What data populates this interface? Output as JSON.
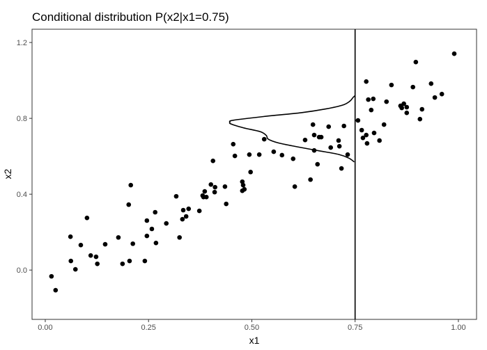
{
  "chart_data": {
    "type": "scatter",
    "title": "Conditional distribution P(x2|x1=0.75)",
    "xlabel": "x1",
    "ylabel": "x2",
    "xlim": [
      -0.032,
      1.044
    ],
    "ylim": [
      -0.26,
      1.27
    ],
    "xticks": [
      0,
      0.25,
      0.5,
      0.75,
      1.0
    ],
    "xtick_labels": [
      "0.00",
      "0.25",
      "0.50",
      "0.75",
      "1.00"
    ],
    "yticks": [
      0,
      0.4,
      0.8,
      1.2
    ],
    "ytick_labels": [
      "0.0",
      "0.4",
      "0.8",
      "1.2"
    ],
    "grid": false,
    "point_color": "#000000",
    "points": [
      [
        0.015,
        -0.033
      ],
      [
        0.025,
        -0.106
      ],
      [
        0.061,
        0.176
      ],
      [
        0.062,
        0.048
      ],
      [
        0.073,
        0.004
      ],
      [
        0.086,
        0.132
      ],
      [
        0.101,
        0.275
      ],
      [
        0.11,
        0.077
      ],
      [
        0.123,
        0.07
      ],
      [
        0.126,
        0.033
      ],
      [
        0.145,
        0.136
      ],
      [
        0.177,
        0.172
      ],
      [
        0.187,
        0.033
      ],
      [
        0.202,
        0.345
      ],
      [
        0.207,
        0.448
      ],
      [
        0.204,
        0.048
      ],
      [
        0.212,
        0.139
      ],
      [
        0.241,
        0.048
      ],
      [
        0.246,
        0.18
      ],
      [
        0.246,
        0.261
      ],
      [
        0.258,
        0.217
      ],
      [
        0.266,
        0.305
      ],
      [
        0.268,
        0.143
      ],
      [
        0.293,
        0.246
      ],
      [
        0.317,
        0.389
      ],
      [
        0.325,
        0.172
      ],
      [
        0.332,
        0.268
      ],
      [
        0.334,
        0.316
      ],
      [
        0.341,
        0.283
      ],
      [
        0.347,
        0.323
      ],
      [
        0.373,
        0.312
      ],
      [
        0.381,
        0.393
      ],
      [
        0.386,
        0.415
      ],
      [
        0.39,
        0.385
      ],
      [
        0.383,
        0.385
      ],
      [
        0.401,
        0.451
      ],
      [
        0.411,
        0.437
      ],
      [
        0.41,
        0.411
      ],
      [
        0.406,
        0.576
      ],
      [
        0.435,
        0.44
      ],
      [
        0.438,
        0.349
      ],
      [
        0.455,
        0.664
      ],
      [
        0.459,
        0.602
      ],
      [
        0.477,
        0.466
      ],
      [
        0.479,
        0.448
      ],
      [
        0.482,
        0.426
      ],
      [
        0.477,
        0.418
      ],
      [
        0.494,
        0.609
      ],
      [
        0.497,
        0.517
      ],
      [
        0.518,
        0.609
      ],
      [
        0.53,
        0.69
      ],
      [
        0.553,
        0.624
      ],
      [
        0.573,
        0.606
      ],
      [
        0.6,
        0.587
      ],
      [
        0.604,
        0.44
      ],
      [
        0.629,
        0.686
      ],
      [
        0.642,
        0.477
      ],
      [
        0.648,
        0.767
      ],
      [
        0.651,
        0.712
      ],
      [
        0.651,
        0.631
      ],
      [
        0.659,
        0.558
      ],
      [
        0.663,
        0.701
      ],
      [
        0.668,
        0.701
      ],
      [
        0.686,
        0.756
      ],
      [
        0.691,
        0.646
      ],
      [
        0.71,
        0.683
      ],
      [
        0.712,
        0.653
      ],
      [
        0.717,
        0.536
      ],
      [
        0.723,
        0.76
      ],
      [
        0.732,
        0.609
      ],
      [
        0.757,
        0.789
      ],
      [
        0.766,
        0.738
      ],
      [
        0.769,
        0.697
      ],
      [
        0.777,
        0.712
      ],
      [
        0.779,
        0.668
      ],
      [
        0.777,
        0.994
      ],
      [
        0.782,
        0.899
      ],
      [
        0.794,
        0.903
      ],
      [
        0.789,
        0.844
      ],
      [
        0.796,
        0.723
      ],
      [
        0.809,
        0.683
      ],
      [
        0.82,
        0.767
      ],
      [
        0.826,
        0.888
      ],
      [
        0.838,
        0.976
      ],
      [
        0.86,
        0.866
      ],
      [
        0.868,
        0.877
      ],
      [
        0.875,
        0.859
      ],
      [
        0.863,
        0.855
      ],
      [
        0.875,
        0.829
      ],
      [
        0.89,
        0.965
      ],
      [
        0.897,
        1.097
      ],
      [
        0.912,
        0.848
      ],
      [
        0.907,
        0.796
      ],
      [
        0.934,
        0.983
      ],
      [
        0.943,
        0.91
      ],
      [
        0.96,
        0.928
      ],
      [
        0.99,
        1.141
      ]
    ],
    "vertical_line_x1": 0.75,
    "density_curve": [
      [
        0.748,
        0.57
      ],
      [
        0.735,
        0.59
      ],
      [
        0.71,
        0.61
      ],
      [
        0.66,
        0.63
      ],
      [
        0.61,
        0.65
      ],
      [
        0.565,
        0.67
      ],
      [
        0.54,
        0.69
      ],
      [
        0.535,
        0.71
      ],
      [
        0.52,
        0.73
      ],
      [
        0.48,
        0.75
      ],
      [
        0.45,
        0.77
      ],
      [
        0.447,
        0.78
      ],
      [
        0.455,
        0.79
      ],
      [
        0.53,
        0.81
      ],
      [
        0.62,
        0.83
      ],
      [
        0.68,
        0.85
      ],
      [
        0.72,
        0.87
      ],
      [
        0.737,
        0.89
      ],
      [
        0.745,
        0.91
      ],
      [
        0.75,
        0.92
      ]
    ]
  }
}
